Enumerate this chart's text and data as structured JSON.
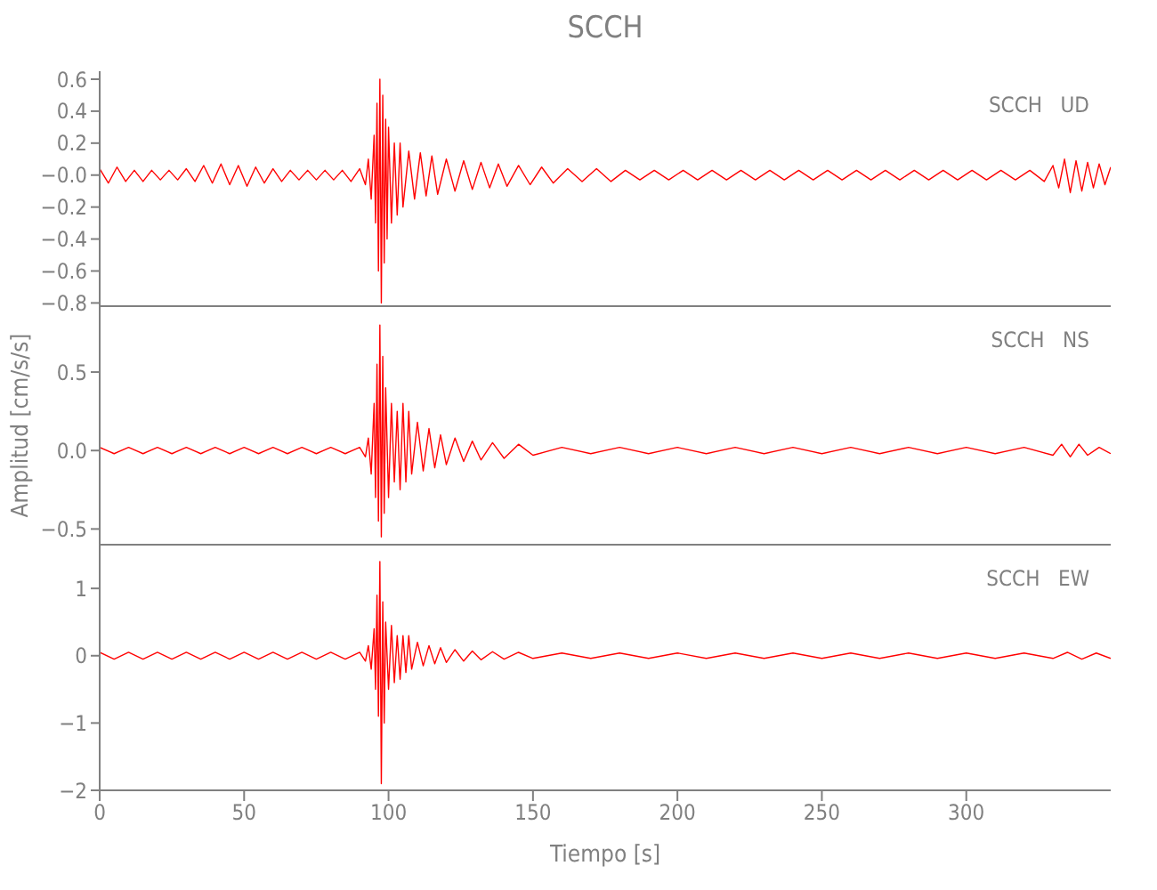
{
  "chart_data": [
    {
      "type": "line",
      "title": "SCCH",
      "annotations": [
        "SCCH   UD"
      ],
      "xlim": [
        0,
        350
      ],
      "ylim": [
        -0.82,
        0.65
      ],
      "yticks": [
        {
          "value": -0.8,
          "label": "−0.8"
        },
        {
          "value": -0.6,
          "label": "−0.6"
        },
        {
          "value": -0.4,
          "label": "−0.4"
        },
        {
          "value": -0.2,
          "label": "−0.2"
        },
        {
          "value": 0,
          "label": "−0.0"
        },
        0.2,
        0.4,
        0.6
      ],
      "tick_labels": "y",
      "series": [
        {
          "color": "#ff0000",
          "x": [
            0,
            3,
            6,
            9,
            12,
            15,
            18,
            21,
            24,
            27,
            30,
            33,
            36,
            39,
            42,
            45,
            48,
            51,
            54,
            57,
            60,
            63,
            66,
            69,
            72,
            75,
            78,
            81,
            84,
            87,
            90,
            92,
            93,
            94,
            95,
            95.5,
            96,
            96.5,
            97,
            97.5,
            98,
            98.5,
            99,
            99.5,
            100,
            101,
            102,
            103,
            104,
            105,
            107,
            109,
            111,
            113,
            115,
            117,
            120,
            123,
            126,
            129,
            132,
            135,
            138,
            141,
            145,
            149,
            153,
            157,
            162,
            167,
            172,
            177,
            182,
            187,
            192,
            197,
            202,
            207,
            212,
            217,
            222,
            227,
            232,
            237,
            242,
            247,
            252,
            257,
            262,
            267,
            272,
            277,
            282,
            287,
            292,
            297,
            302,
            307,
            312,
            317,
            322,
            327,
            330,
            332,
            334,
            336,
            338,
            340,
            342,
            344,
            346,
            348,
            350
          ],
          "values": [
            0.04,
            -0.05,
            0.05,
            -0.04,
            0.03,
            -0.04,
            0.03,
            -0.03,
            0.03,
            -0.03,
            0.04,
            -0.04,
            0.06,
            -0.05,
            0.07,
            -0.06,
            0.06,
            -0.07,
            0.05,
            -0.05,
            0.04,
            -0.04,
            0.03,
            -0.03,
            0.03,
            -0.03,
            0.03,
            -0.03,
            0.03,
            -0.04,
            0.04,
            -0.06,
            0.1,
            -0.15,
            0.25,
            -0.3,
            0.45,
            -0.6,
            0.6,
            -0.8,
            0.5,
            -0.55,
            0.35,
            -0.4,
            0.3,
            -0.3,
            0.2,
            -0.25,
            0.2,
            -0.2,
            0.15,
            -0.15,
            0.14,
            -0.13,
            0.12,
            -0.12,
            0.1,
            -0.1,
            0.09,
            -0.09,
            0.08,
            -0.08,
            0.07,
            -0.07,
            0.06,
            -0.06,
            0.05,
            -0.05,
            0.04,
            -0.04,
            0.04,
            -0.04,
            0.03,
            -0.03,
            0.03,
            -0.03,
            0.03,
            -0.03,
            0.03,
            -0.03,
            0.03,
            -0.03,
            0.03,
            -0.03,
            0.03,
            -0.03,
            0.03,
            -0.03,
            0.03,
            -0.03,
            0.03,
            -0.03,
            0.03,
            -0.03,
            0.03,
            -0.03,
            0.03,
            -0.03,
            0.03,
            -0.03,
            0.03,
            -0.04,
            0.06,
            -0.08,
            0.1,
            -0.11,
            0.09,
            -0.1,
            0.08,
            -0.08,
            0.07,
            -0.06,
            0.05
          ]
        }
      ]
    },
    {
      "type": "line",
      "ylabel": "Amplitud [cm/s/s]",
      "annotations": [
        "SCCH   NS"
      ],
      "xlim": [
        0,
        350
      ],
      "ylim": [
        -0.6,
        0.92
      ],
      "yticks": [
        {
          "value": -0.5,
          "label": "−0.5"
        },
        {
          "value": 0,
          "label": "0.0"
        },
        0.5
      ],
      "tick_labels": "y",
      "series": [
        {
          "color": "#ff0000",
          "x": [
            0,
            5,
            10,
            15,
            20,
            25,
            30,
            35,
            40,
            45,
            50,
            55,
            60,
            65,
            70,
            75,
            80,
            85,
            90,
            92,
            93,
            94,
            95,
            95.5,
            96,
            96.5,
            97,
            97.5,
            98,
            98.5,
            99,
            100,
            101,
            102,
            103,
            104,
            105,
            106,
            107,
            108,
            110,
            112,
            114,
            116,
            118,
            120,
            123,
            126,
            129,
            132,
            136,
            140,
            145,
            150,
            160,
            170,
            180,
            190,
            200,
            210,
            220,
            230,
            240,
            250,
            260,
            270,
            280,
            290,
            300,
            310,
            320,
            330,
            333,
            336,
            339,
            342,
            346,
            350
          ],
          "values": [
            0.02,
            -0.02,
            0.02,
            -0.02,
            0.02,
            -0.02,
            0.02,
            -0.02,
            0.02,
            -0.02,
            0.02,
            -0.02,
            0.02,
            -0.02,
            0.02,
            -0.02,
            0.02,
            -0.02,
            0.02,
            -0.04,
            0.08,
            -0.15,
            0.3,
            -0.3,
            0.55,
            -0.45,
            0.8,
            -0.55,
            0.6,
            -0.4,
            0.4,
            -0.3,
            0.3,
            -0.2,
            0.25,
            -0.25,
            0.3,
            -0.2,
            0.25,
            -0.15,
            0.18,
            -0.13,
            0.14,
            -0.11,
            0.1,
            -0.09,
            0.08,
            -0.07,
            0.06,
            -0.06,
            0.05,
            -0.05,
            0.04,
            -0.03,
            0.02,
            -0.02,
            0.02,
            -0.02,
            0.02,
            -0.02,
            0.02,
            -0.02,
            0.02,
            -0.02,
            0.02,
            -0.02,
            0.02,
            -0.02,
            0.02,
            -0.02,
            0.02,
            -0.03,
            0.04,
            -0.04,
            0.04,
            -0.03,
            0.02,
            -0.02
          ]
        }
      ]
    },
    {
      "type": "line",
      "xlabel": "Tiempo [s]",
      "annotations": [
        "SCCH   EW"
      ],
      "xlim": [
        0,
        350
      ],
      "xticks": [
        0,
        50,
        100,
        150,
        200,
        250,
        300
      ],
      "ylim": [
        -2,
        1.65
      ],
      "yticks": [
        {
          "value": -2,
          "label": "−2"
        },
        {
          "value": -1,
          "label": "−1"
        },
        0,
        1
      ],
      "series": [
        {
          "color": "#ff0000",
          "x": [
            0,
            5,
            10,
            15,
            20,
            25,
            30,
            35,
            40,
            45,
            50,
            55,
            60,
            65,
            70,
            75,
            80,
            85,
            90,
            92,
            93,
            94,
            95,
            95.5,
            96,
            96.5,
            97,
            97.5,
            98,
            98.5,
            99,
            100,
            101,
            102,
            103,
            104,
            105,
            106,
            107,
            108,
            110,
            112,
            114,
            116,
            118,
            120,
            123,
            126,
            129,
            132,
            136,
            140,
            145,
            150,
            160,
            170,
            180,
            190,
            200,
            210,
            220,
            230,
            240,
            250,
            260,
            270,
            280,
            290,
            300,
            310,
            320,
            330,
            335,
            340,
            345,
            350
          ],
          "values": [
            0.05,
            -0.05,
            0.05,
            -0.05,
            0.05,
            -0.05,
            0.05,
            -0.05,
            0.05,
            -0.05,
            0.05,
            -0.05,
            0.05,
            -0.05,
            0.05,
            -0.05,
            0.05,
            -0.05,
            0.05,
            -0.08,
            0.15,
            -0.2,
            0.4,
            -0.5,
            0.9,
            -0.9,
            1.4,
            -1.9,
            0.8,
            -1,
            0.5,
            -0.5,
            0.45,
            -0.4,
            0.3,
            -0.35,
            0.3,
            -0.25,
            0.3,
            -0.2,
            0.2,
            -0.15,
            0.15,
            -0.12,
            0.12,
            -0.1,
            0.09,
            -0.08,
            0.07,
            -0.06,
            0.06,
            -0.05,
            0.05,
            -0.04,
            0.04,
            -0.04,
            0.04,
            -0.04,
            0.04,
            -0.04,
            0.04,
            -0.04,
            0.04,
            -0.04,
            0.04,
            -0.04,
            0.04,
            -0.04,
            0.04,
            -0.04,
            0.04,
            -0.04,
            0.05,
            -0.05,
            0.04,
            -0.04
          ]
        }
      ]
    }
  ]
}
